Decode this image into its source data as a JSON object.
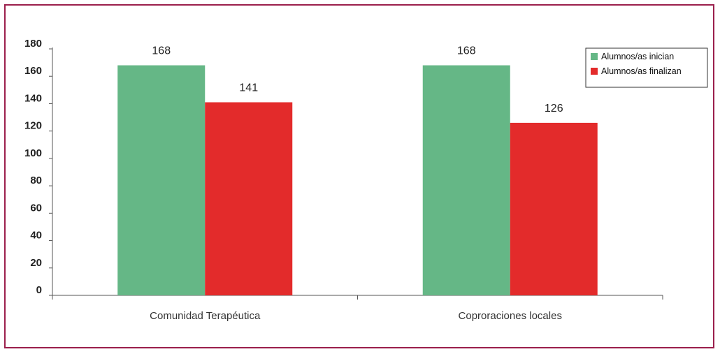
{
  "chart_data": {
    "type": "bar",
    "categories": [
      "Comunidad Terapéutica",
      "Coproraciones locales"
    ],
    "series": [
      {
        "name": "Alumnos/as inician",
        "values": [
          168,
          168
        ],
        "color": "#65b786"
      },
      {
        "name": "Alumnos/as finalizan",
        "values": [
          141,
          126
        ],
        "color": "#e32b2b"
      }
    ],
    "ylim": [
      0,
      180
    ],
    "yticks": [
      0,
      20,
      40,
      60,
      80,
      100,
      120,
      140,
      160,
      180
    ],
    "ytick_labels": [
      "0",
      "20",
      "40",
      "60",
      "80",
      "100",
      "120",
      "140",
      "160",
      "180"
    ],
    "xlabel": "",
    "ylabel": "",
    "grid": false,
    "legend_position": "top-right",
    "data_labels": true
  }
}
